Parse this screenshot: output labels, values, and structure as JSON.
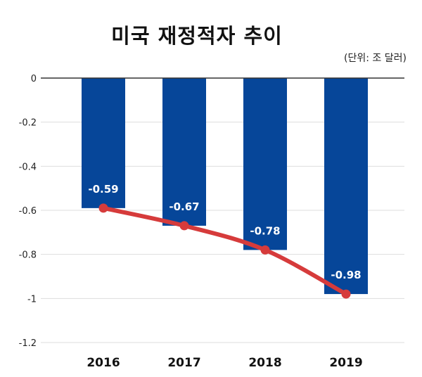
{
  "chart_data": {
    "type": "bar",
    "title": "미국 재정적자 추이",
    "unit_note": "(단위: 조 달러)",
    "categories": [
      "2016",
      "2017",
      "2018",
      "2019"
    ],
    "values": [
      -0.59,
      -0.67,
      -0.78,
      -0.98
    ],
    "data_labels": [
      "-0.59",
      "-0.67",
      "-0.78",
      "-0.98"
    ],
    "overlay_line": {
      "type": "line",
      "values": [
        -0.59,
        -0.67,
        -0.78,
        -0.98
      ]
    },
    "yticks": [
      0,
      -0.2,
      -0.4,
      -0.6,
      -0.8,
      -1,
      -1.2
    ],
    "ytick_labels": [
      "0",
      "-0.2",
      "-0.4",
      "-0.6",
      "-0.8",
      "-1",
      "-1.2"
    ],
    "ylim": [
      -1.2,
      0
    ],
    "grid": true,
    "colors": {
      "bar": "#064699",
      "line": "#d63b3b",
      "grid": "#dddddd",
      "zero_line": "#333333"
    }
  }
}
